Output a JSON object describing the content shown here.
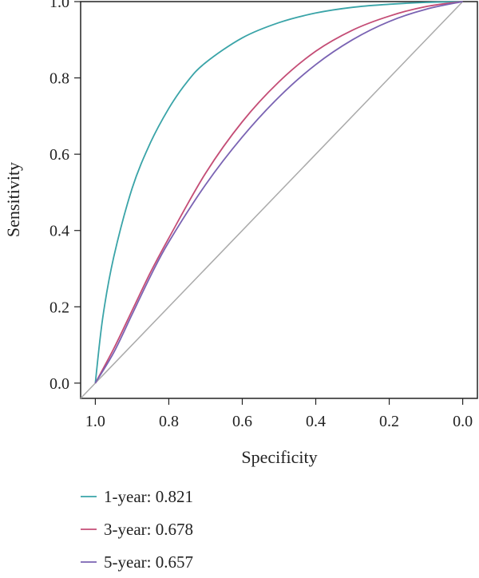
{
  "chart_data": {
    "type": "line",
    "title": "",
    "xlabel": "Specificity",
    "ylabel": "Sensitivity",
    "xlim": [
      1.04,
      -0.04
    ],
    "ylim": [
      -0.04,
      1.0
    ],
    "x_reversed": true,
    "xticks": [
      "1.0",
      "0.8",
      "0.6",
      "0.4",
      "0.2",
      "0.0"
    ],
    "xtick_values": [
      1.0,
      0.8,
      0.6,
      0.4,
      0.2,
      0.0
    ],
    "yticks": [
      "0.0",
      "0.2",
      "0.4",
      "0.6",
      "0.8",
      "1.0"
    ],
    "ytick_values": [
      0.0,
      0.2,
      0.4,
      0.6,
      0.8,
      1.0
    ],
    "grid": false,
    "legend_position": "bottom-left",
    "reference_line": {
      "color": "#aaaaaa",
      "points": [
        [
          1.04,
          -0.04
        ],
        [
          0.0,
          1.0
        ]
      ]
    },
    "series": [
      {
        "name": "1-year: 0.821",
        "color": "#3aa4a8",
        "points": [
          [
            1.0,
            0.0
          ],
          [
            0.98,
            0.17
          ],
          [
            0.95,
            0.33
          ],
          [
            0.9,
            0.51
          ],
          [
            0.85,
            0.63
          ],
          [
            0.8,
            0.72
          ],
          [
            0.75,
            0.79
          ],
          [
            0.7,
            0.84
          ],
          [
            0.6,
            0.905
          ],
          [
            0.5,
            0.945
          ],
          [
            0.4,
            0.97
          ],
          [
            0.3,
            0.985
          ],
          [
            0.2,
            0.993
          ],
          [
            0.1,
            0.998
          ],
          [
            0.0,
            1.0
          ]
        ]
      },
      {
        "name": "3-year: 0.678",
        "color": "#c44d76",
        "points": [
          [
            1.0,
            0.0
          ],
          [
            0.95,
            0.09
          ],
          [
            0.9,
            0.19
          ],
          [
            0.85,
            0.29
          ],
          [
            0.8,
            0.38
          ],
          [
            0.7,
            0.55
          ],
          [
            0.6,
            0.685
          ],
          [
            0.5,
            0.79
          ],
          [
            0.4,
            0.87
          ],
          [
            0.3,
            0.925
          ],
          [
            0.2,
            0.962
          ],
          [
            0.1,
            0.987
          ],
          [
            0.0,
            1.0
          ]
        ]
      },
      {
        "name": "5-year: 0.657",
        "color": "#7a63b3",
        "points": [
          [
            1.0,
            0.0
          ],
          [
            0.95,
            0.08
          ],
          [
            0.9,
            0.18
          ],
          [
            0.85,
            0.28
          ],
          [
            0.8,
            0.37
          ],
          [
            0.7,
            0.52
          ],
          [
            0.6,
            0.645
          ],
          [
            0.5,
            0.75
          ],
          [
            0.4,
            0.835
          ],
          [
            0.3,
            0.9
          ],
          [
            0.2,
            0.948
          ],
          [
            0.1,
            0.98
          ],
          [
            0.0,
            1.0
          ]
        ]
      }
    ]
  }
}
